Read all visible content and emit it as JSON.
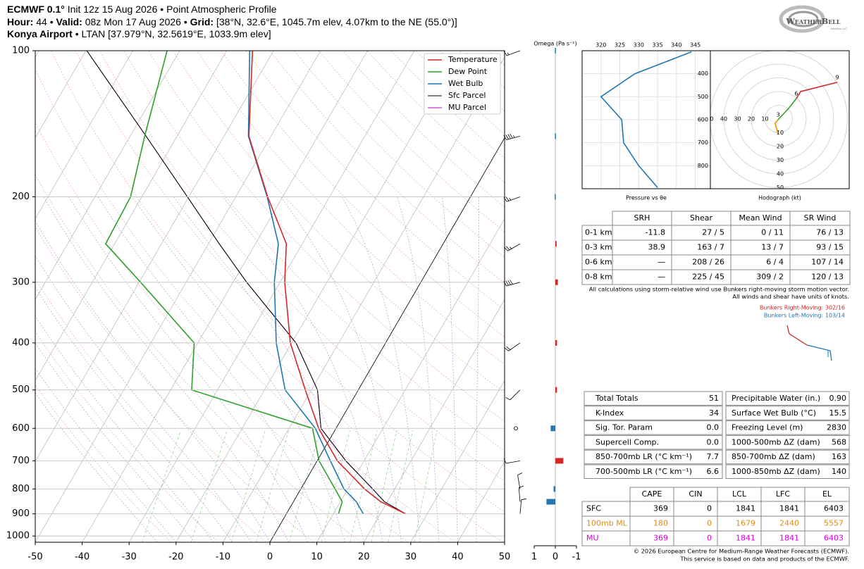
{
  "header": {
    "model": "ECMWF 0.1°",
    "init": "Init 12z 15 Aug 2026",
    "separator": "•",
    "product": "Point Atmospheric Profile",
    "hour_label": "Hour:",
    "hour": "44",
    "valid_label": "Valid:",
    "valid": "08z Mon 17 Aug 2026",
    "grid_label": "Grid:",
    "grid": "[38°N, 32.6°E, 1045.7m elev, 4.07km to the NE (55.0°)]",
    "station": "Konya Airport",
    "station_info": "LTAN [37.979°N, 32.5619°E, 1033.9m elev]"
  },
  "logo": {
    "name": "WeatherBell",
    "tagline": "Analytics LLC"
  },
  "chart_data": [
    {
      "type": "skewt",
      "pressure": [
        900,
        850,
        800,
        700,
        600,
        500,
        400,
        300,
        250,
        200,
        150,
        100
      ],
      "series": [
        {
          "name": "Temperature",
          "color": "#d62728",
          "values": [
            25.4,
            18.6,
            13.6,
            4.3,
            -3.7,
            -11.3,
            -20.3,
            -29.0,
            -33.4,
            -43.2,
            -54.7,
            -64.5
          ]
        },
        {
          "name": "Dew Point",
          "color": "#2ca02c",
          "values": [
            11.1,
            10.4,
            7.3,
            0.4,
            -5.0,
            -35.5,
            -40.8,
            -59.7,
            -71.9,
            -72.4,
            -76.9,
            -82.7
          ]
        },
        {
          "name": "Wet Bulb",
          "color": "#1f77b4",
          "values": [
            16.4,
            13.4,
            9.2,
            2.8,
            -4.4,
            -15.6,
            -23.3,
            -31.2,
            -35.1,
            -43.3,
            -54.8,
            -65.1
          ]
        },
        {
          "name": "Sfc Parcel",
          "color": "#000000",
          "values": [
            25.4,
            19.4,
            15.3,
            6.1,
            -3.2,
            -8.7,
            -19.1,
            -37.1,
            -47.7,
            -60.3,
            -76.6,
            -99.8
          ]
        },
        {
          "name": "MU Parcel",
          "color": "#c000c0",
          "values": [
            25.4,
            19.4,
            15.3,
            6.1,
            -3.2,
            -8.7,
            -19.1,
            -37.1,
            -47.7,
            -60.3,
            -76.6,
            -99.8
          ]
        }
      ],
      "xlim": [
        -50,
        50
      ],
      "xticks": [
        -50,
        -40,
        -30,
        -20,
        -10,
        0,
        10,
        20,
        30,
        40,
        50
      ],
      "ylim": [
        1030,
        100
      ],
      "yticks": [
        100,
        200,
        300,
        400,
        500,
        600,
        700,
        800,
        900,
        1000
      ],
      "log_y": true,
      "grid": true,
      "legend": "upper right",
      "highlight_isotherm": 0,
      "wind_barbs": {
        "pressure": [
          100,
          150,
          200,
          250,
          300,
          400,
          500,
          600,
          700,
          800,
          850,
          900
        ],
        "speed": [
          15,
          45,
          25,
          25,
          40,
          20,
          10,
          0,
          10,
          10,
          10,
          10
        ],
        "direction": [
          250,
          255,
          250,
          240,
          255,
          235,
          225,
          0,
          260,
          350,
          355,
          5
        ]
      }
    },
    {
      "type": "bar",
      "title": "Omega (Pa s⁻¹)",
      "pressure": [
        100,
        150,
        200,
        250,
        300,
        400,
        500,
        600,
        700,
        800,
        850
      ],
      "values": [
        0.02,
        0.02,
        0.03,
        -0.06,
        -0.12,
        -0.08,
        -0.08,
        0.22,
        -0.38,
        0.08,
        0.42
      ],
      "xlim": [
        1,
        -1
      ],
      "xticks": [
        1,
        0,
        -1
      ],
      "ylim": [
        1030,
        100
      ],
      "positive_color": "#1f77b4",
      "negative_color": "#d62728"
    },
    {
      "type": "line",
      "title": "Pressure vs θe",
      "pressure": [
        895,
        800,
        700,
        600,
        500,
        400,
        305
      ],
      "values": [
        335,
        330,
        326,
        325.5,
        320,
        329,
        344
      ],
      "color": "#1f77b4",
      "xlim": [
        315,
        349
      ],
      "xticks": [
        320,
        325,
        330,
        335,
        340,
        345
      ],
      "ylim": [
        900,
        300
      ],
      "yticks": [
        400,
        500,
        600,
        700,
        800
      ],
      "grid": true
    },
    {
      "type": "hodograph",
      "title": "Hodograph (kt)",
      "rings": [
        10,
        20,
        30,
        40,
        50
      ],
      "series": [
        {
          "color": "#ff8c00",
          "u": [
            -0.5,
            -2.6,
            -0.5
          ],
          "v": [
            -10.8,
            -3.1,
            -0.5
          ]
        },
        {
          "color": "#2ca02c",
          "u": [
            -0.5,
            6.7,
            12.8
          ],
          "v": [
            -0.5,
            7.2,
            14.9
          ]
        },
        {
          "color": "#d62728",
          "u": [
            12.8,
            15.9,
            42.6
          ],
          "v": [
            14.9,
            20.0,
            26.7
          ]
        }
      ],
      "markers": [
        {
          "label": 3,
          "u": -0.5,
          "v": -0.5
        },
        {
          "label": 6,
          "u": 12.8,
          "v": 14.9
        },
        {
          "label": 9,
          "u": 42.6,
          "v": 26.7
        }
      ]
    }
  ],
  "shear_table": {
    "columns": [
      "SRH",
      "Shear",
      "Mean Wind",
      "SR Wind"
    ],
    "rows": [
      {
        "label": "0-1 km",
        "cells": [
          "-11.8",
          "27 / 5",
          "0 / 11",
          "76 / 13"
        ]
      },
      {
        "label": "0-3 km",
        "cells": [
          "38.9",
          "163 / 7",
          "13 / 7",
          "93 / 15"
        ]
      },
      {
        "label": "0-6 km",
        "cells": [
          "—",
          "208 / 26",
          "6 / 4",
          "107 / 14"
        ]
      },
      {
        "label": "0-8 km",
        "cells": [
          "—",
          "225 / 45",
          "309 / 2",
          "120 / 13"
        ]
      }
    ]
  },
  "notes": [
    "All calculations using storm-relative wind use Bunkers right-moving storm motion vector.",
    "All winds and shear have units of knots."
  ],
  "bunkers": [
    {
      "text": "Bunkers Right-Moving: 302/16",
      "color": "#d62728"
    },
    {
      "text": "Bunkers Left-Moving: 103/14",
      "color": "#1f77b4"
    }
  ],
  "indices_table": {
    "rows": [
      [
        "Total Totals",
        "51",
        "Precipitable Water (in.)",
        "0.90"
      ],
      [
        "K-Index",
        "34",
        "Surface Wet Bulb (°C)",
        "15.5"
      ],
      [
        "Sig. Tor. Param",
        "0.0",
        "Freezing Level (m)",
        "2830"
      ],
      [
        "Supercell Comp.",
        "0.0",
        "1000-500mb ΔZ (dam)",
        "568"
      ],
      [
        "850-700mb LR (°C km⁻¹)",
        "7.7",
        "850-700mb ΔZ (dam)",
        "163"
      ],
      [
        "700-500mb LR (°C km⁻¹)",
        "6.6",
        "1000-850mb ΔZ (dam)",
        "140"
      ]
    ]
  },
  "parcel_table": {
    "columns": [
      "CAPE",
      "CIN",
      "LCL",
      "LFC",
      "EL"
    ],
    "rows": [
      {
        "label": "SFC",
        "color": "#000000",
        "cells": [
          "369",
          "0",
          "1841",
          "1841",
          "6403"
        ]
      },
      {
        "label": "100mb ML",
        "color": "#e08c1a",
        "cells": [
          "180",
          "0",
          "1679",
          "2440",
          "5557"
        ]
      },
      {
        "label": "MU",
        "color": "#d400d4",
        "cells": [
          "369",
          "0",
          "1841",
          "1841",
          "6403"
        ]
      }
    ]
  },
  "footer": [
    "© 2026 European Centre for Medium-Range Weather Forecasts (ECMWF).",
    "This service is based on data and products of the ECMWF."
  ]
}
